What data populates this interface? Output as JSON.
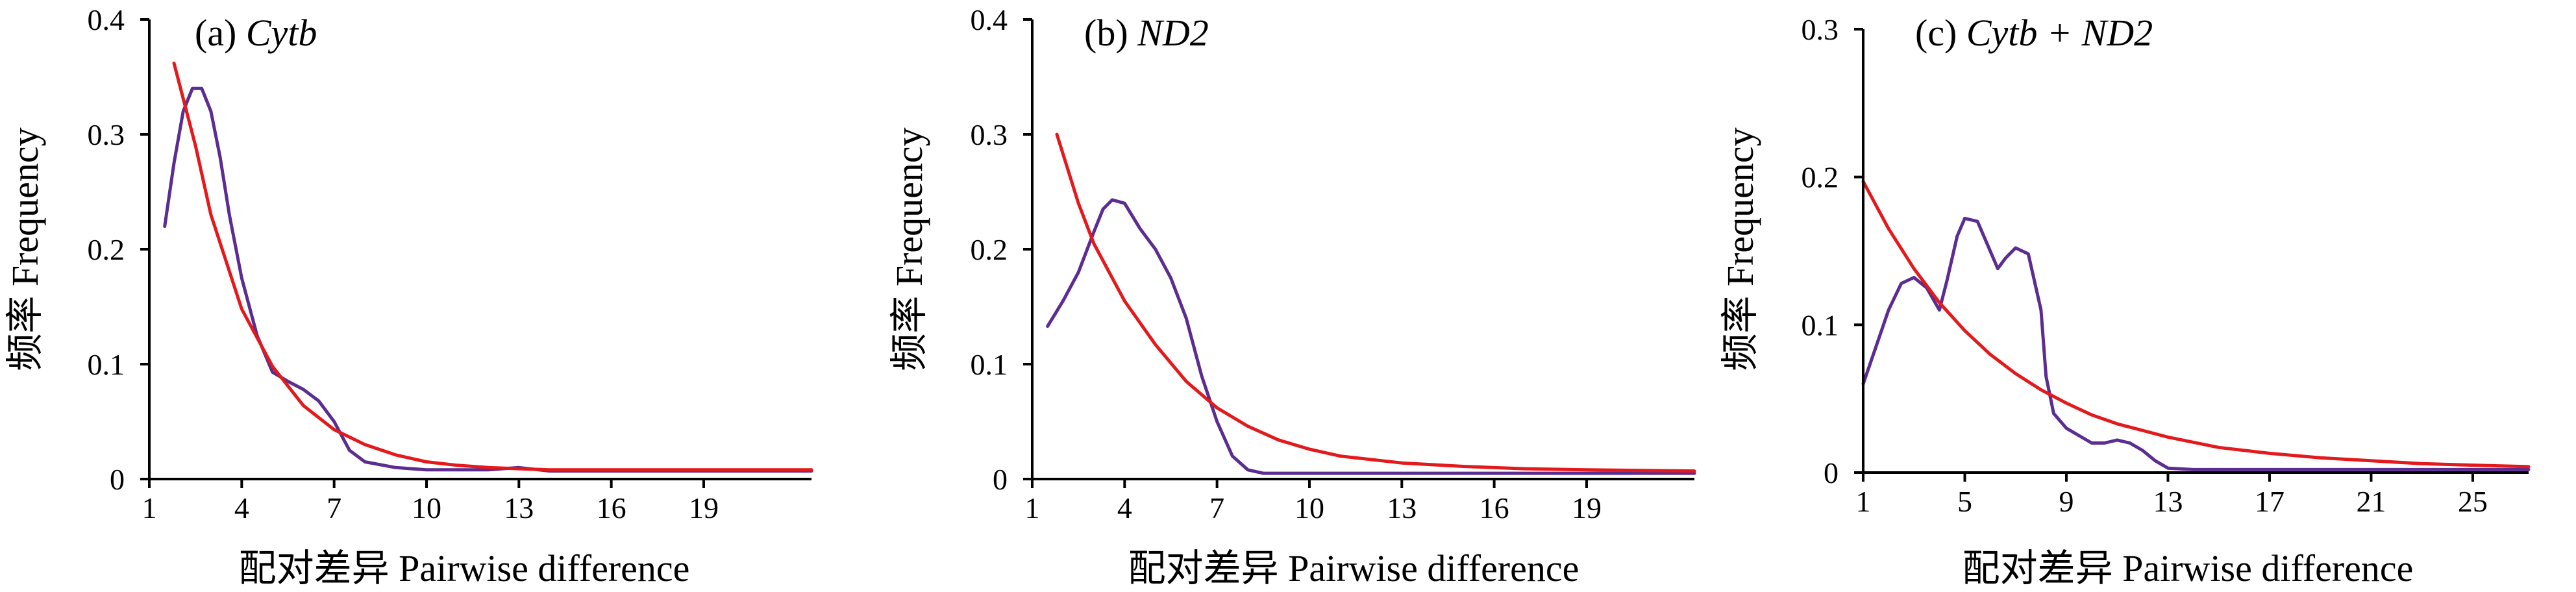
{
  "chart_data": [
    {
      "type": "line",
      "panel_label": "(a) ",
      "panel_name": "Cytb",
      "xlabel": "配对差异 Pairwise difference",
      "ylabel": "频率 Frequency",
      "xlim": [
        1,
        22.5
      ],
      "ylim": [
        0,
        0.4
      ],
      "xticks": [
        "1",
        "4",
        "7",
        "10",
        "13",
        "16",
        "19"
      ],
      "yticks": [
        "0",
        "0.1",
        "0.2",
        "0.3",
        "0.4"
      ],
      "grid": false,
      "series": [
        {
          "color": "#5b2d91",
          "x": [
            1.5,
            1.8,
            2.1,
            2.4,
            2.7,
            3.0,
            3.3,
            3.6,
            4.0,
            4.5,
            5.0,
            5.5,
            6.0,
            6.5,
            7.0,
            7.5,
            8.0,
            9.0,
            10.0,
            11.0,
            12.0,
            13.0,
            14.0,
            16.0,
            19.0,
            22.5
          ],
          "y": [
            0.22,
            0.275,
            0.32,
            0.34,
            0.34,
            0.32,
            0.28,
            0.23,
            0.175,
            0.125,
            0.093,
            0.085,
            0.078,
            0.068,
            0.05,
            0.025,
            0.015,
            0.01,
            0.008,
            0.008,
            0.008,
            0.01,
            0.007,
            0.007,
            0.007,
            0.007
          ]
        },
        {
          "color": "#e3191c",
          "x": [
            1.8,
            2.5,
            3.0,
            4.0,
            5.0,
            6.0,
            7.0,
            8.0,
            9.0,
            10.0,
            11.0,
            12.0,
            13.0,
            14.0,
            16.0,
            19.0,
            22.5
          ],
          "y": [
            0.362,
            0.29,
            0.23,
            0.148,
            0.098,
            0.064,
            0.043,
            0.03,
            0.021,
            0.015,
            0.012,
            0.01,
            0.009,
            0.008,
            0.008,
            0.008,
            0.008
          ]
        }
      ]
    },
    {
      "type": "line",
      "panel_label": "(b) ",
      "panel_name": "ND2",
      "xlabel": "配对差异 Pairwise difference",
      "ylabel": "频率 Frequency",
      "xlim": [
        1,
        22.5
      ],
      "ylim": [
        0,
        0.4
      ],
      "xticks": [
        "1",
        "4",
        "7",
        "10",
        "13",
        "16",
        "19"
      ],
      "yticks": [
        "0",
        "0.1",
        "0.2",
        "0.3",
        "0.4"
      ],
      "grid": false,
      "series": [
        {
          "color": "#5b2d91",
          "x": [
            1.5,
            2.0,
            2.5,
            3.0,
            3.3,
            3.6,
            4.0,
            4.5,
            5.0,
            5.5,
            6.0,
            6.5,
            7.0,
            7.5,
            8.0,
            8.5,
            9.0,
            10.0,
            12.0,
            15.0,
            19.0,
            22.5
          ],
          "y": [
            0.133,
            0.155,
            0.18,
            0.215,
            0.235,
            0.243,
            0.24,
            0.218,
            0.2,
            0.175,
            0.14,
            0.09,
            0.05,
            0.02,
            0.008,
            0.005,
            0.005,
            0.005,
            0.005,
            0.005,
            0.005,
            0.005
          ]
        },
        {
          "color": "#e3191c",
          "x": [
            1.8,
            2.5,
            3.0,
            4.0,
            5.0,
            6.0,
            7.0,
            8.0,
            9.0,
            10.0,
            11.0,
            13.0,
            15.0,
            17.0,
            19.0,
            22.5
          ],
          "y": [
            0.3,
            0.24,
            0.205,
            0.155,
            0.117,
            0.085,
            0.062,
            0.046,
            0.034,
            0.026,
            0.02,
            0.014,
            0.011,
            0.009,
            0.008,
            0.007
          ]
        }
      ]
    },
    {
      "type": "line",
      "panel_label": "(c) ",
      "panel_name": "Cytb + ND2",
      "xlabel": "配对差异 Pairwise difference",
      "ylabel": "频率 Frequency",
      "xlim": [
        1,
        27.2
      ],
      "ylim": [
        0,
        0.3
      ],
      "xticks": [
        "1",
        "5",
        "9",
        "13",
        "17",
        "21",
        "25"
      ],
      "yticks": [
        "0",
        "0.1",
        "0.2",
        "0.3"
      ],
      "grid": false,
      "series": [
        {
          "color": "#5b2d91",
          "x": [
            1.0,
            1.5,
            2.0,
            2.5,
            3.0,
            3.5,
            4.0,
            4.3,
            4.7,
            5.0,
            5.5,
            6.0,
            6.3,
            6.6,
            7.0,
            7.5,
            8.0,
            8.2,
            8.5,
            9.0,
            9.5,
            10.0,
            10.5,
            11.0,
            11.5,
            12.0,
            12.5,
            13.0,
            14.0,
            16.0,
            20.0,
            27.2
          ],
          "y": [
            0.06,
            0.085,
            0.11,
            0.128,
            0.132,
            0.125,
            0.11,
            0.13,
            0.16,
            0.172,
            0.17,
            0.15,
            0.138,
            0.145,
            0.152,
            0.148,
            0.11,
            0.065,
            0.04,
            0.03,
            0.025,
            0.02,
            0.02,
            0.022,
            0.02,
            0.015,
            0.008,
            0.003,
            0.002,
            0.002,
            0.002,
            0.002
          ]
        },
        {
          "color": "#e3191c",
          "x": [
            1.0,
            2.0,
            3.0,
            4.0,
            5.0,
            6.0,
            7.0,
            8.0,
            9.0,
            10.0,
            11.0,
            13.0,
            15.0,
            17.0,
            19.0,
            21.0,
            23.0,
            25.0,
            27.2
          ],
          "y": [
            0.197,
            0.165,
            0.138,
            0.115,
            0.096,
            0.08,
            0.067,
            0.056,
            0.047,
            0.039,
            0.033,
            0.024,
            0.017,
            0.013,
            0.01,
            0.008,
            0.006,
            0.005,
            0.004
          ]
        }
      ]
    }
  ]
}
